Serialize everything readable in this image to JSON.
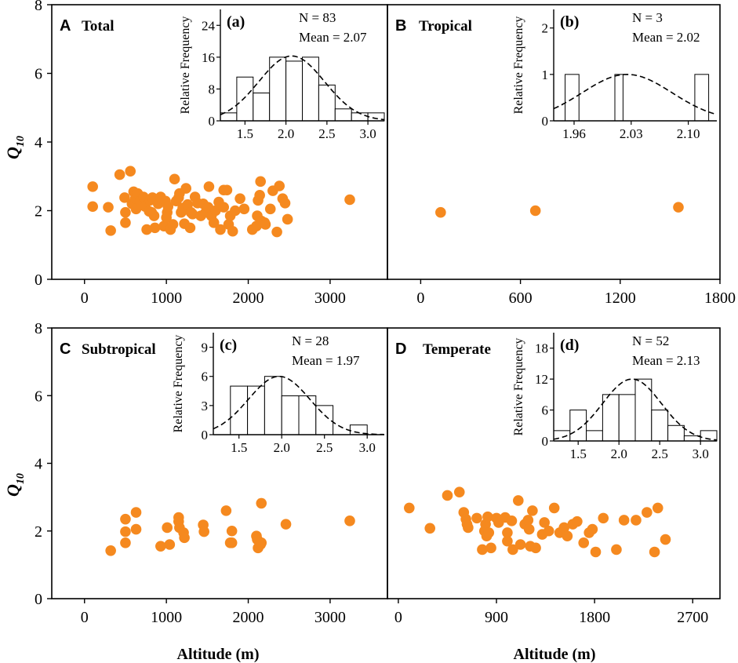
{
  "figure": {
    "ylabel_main": "Q",
    "ylabel_sub": "10",
    "xlabel": "Altitude (m)",
    "point_color": "#F5891F",
    "inset_ylabel": "Relative Frequency"
  },
  "chart_data": [
    {
      "type": "scatter",
      "panel_letter": "A",
      "title": "Total",
      "xlim": [
        -400,
        3700
      ],
      "ylim": [
        0,
        8
      ],
      "xticks": [
        0,
        1000,
        2000,
        3000
      ],
      "xtick_labels": [
        "0",
        "1000",
        "2000",
        "3000"
      ],
      "yticks": [
        0,
        2,
        4,
        6,
        8
      ],
      "ytick_labels": [
        "0",
        "2",
        "4",
        "6",
        "8"
      ],
      "points": [
        [
          100,
          2.7
        ],
        [
          100,
          2.12
        ],
        [
          290,
          2.1
        ],
        [
          320,
          1.42
        ],
        [
          430,
          3.05
        ],
        [
          490,
          2.38
        ],
        [
          500,
          1.95
        ],
        [
          500,
          1.65
        ],
        [
          560,
          3.15
        ],
        [
          580,
          2.2
        ],
        [
          600,
          2.55
        ],
        [
          620,
          2.35
        ],
        [
          630,
          2.05
        ],
        [
          650,
          2.5
        ],
        [
          680,
          2.28
        ],
        [
          720,
          2.4
        ],
        [
          740,
          2.12
        ],
        [
          760,
          1.45
        ],
        [
          790,
          1.98
        ],
        [
          800,
          2.3
        ],
        [
          830,
          2.38
        ],
        [
          850,
          1.85
        ],
        [
          860,
          1.5
        ],
        [
          900,
          2.2
        ],
        [
          930,
          2.4
        ],
        [
          970,
          1.55
        ],
        [
          990,
          2.28
        ],
        [
          1010,
          1.95
        ],
        [
          1020,
          2.12
        ],
        [
          1050,
          1.45
        ],
        [
          1080,
          1.6
        ],
        [
          1100,
          2.92
        ],
        [
          1120,
          2.28
        ],
        [
          1150,
          2.38
        ],
        [
          1160,
          2.5
        ],
        [
          1180,
          1.95
        ],
        [
          1200,
          2.08
        ],
        [
          1220,
          1.62
        ],
        [
          1240,
          2.65
        ],
        [
          1260,
          2.18
        ],
        [
          1290,
          1.5
        ],
        [
          1320,
          1.9
        ],
        [
          1350,
          2.4
        ],
        [
          1380,
          2.22
        ],
        [
          1420,
          1.85
        ],
        [
          1450,
          2.2
        ],
        [
          1480,
          1.95
        ],
        [
          1510,
          2.1
        ],
        [
          1520,
          2.7
        ],
        [
          1550,
          1.85
        ],
        [
          1580,
          1.65
        ],
        [
          1600,
          2.0
        ],
        [
          1640,
          2.25
        ],
        [
          1660,
          1.45
        ],
        [
          1700,
          2.1
        ],
        [
          1740,
          2.6
        ],
        [
          1760,
          1.6
        ],
        [
          1780,
          1.85
        ],
        [
          1810,
          1.4
        ],
        [
          1840,
          2.0
        ],
        [
          1900,
          2.35
        ],
        [
          1950,
          2.05
        ],
        [
          2050,
          1.45
        ],
        [
          2100,
          1.55
        ],
        [
          2110,
          1.85
        ],
        [
          2120,
          2.3
        ],
        [
          2140,
          2.45
        ],
        [
          2150,
          2.85
        ],
        [
          2160,
          1.7
        ],
        [
          2200,
          1.65
        ],
        [
          2210,
          1.6
        ],
        [
          2270,
          2.05
        ],
        [
          2300,
          2.58
        ],
        [
          2350,
          1.38
        ],
        [
          2380,
          2.72
        ],
        [
          2420,
          2.35
        ],
        [
          2450,
          2.22
        ],
        [
          2480,
          1.75
        ],
        [
          3240,
          2.32
        ],
        [
          1700,
          2.6
        ],
        [
          1300,
          1.95
        ],
        [
          1000,
          1.8
        ],
        [
          820,
          1.95
        ]
      ],
      "inset": {
        "label": "(a)",
        "n_text": "N = 83",
        "mean_text": "Mean = 2.07",
        "xlim": [
          1.2,
          3.2
        ],
        "ylim": [
          0,
          28
        ],
        "xticks": [
          1.5,
          2.0,
          2.5,
          3.0
        ],
        "xtick_labels": [
          "1.5",
          "2.0",
          "2.5",
          "3.0"
        ],
        "yticks": [
          0,
          8,
          16,
          24
        ],
        "ytick_labels": [
          "0",
          "8",
          "16",
          "24"
        ],
        "bin_edges": [
          1.2,
          1.4,
          1.6,
          1.8,
          2.0,
          2.2,
          2.4,
          2.6,
          2.8,
          3.0,
          3.2
        ],
        "values": [
          2,
          11,
          7,
          16,
          15,
          16,
          9,
          3,
          2,
          2
        ],
        "curve": {
          "mean": 2.07,
          "sd": 0.4,
          "peak": 16.3
        }
      }
    },
    {
      "type": "scatter",
      "panel_letter": "B",
      "title": "Tropical",
      "xlim": [
        -200,
        1800
      ],
      "ylim": [
        0,
        8
      ],
      "xticks": [
        0,
        600,
        1200,
        1800
      ],
      "xtick_labels": [
        "0",
        "600",
        "1200",
        "1800"
      ],
      "yticks": [
        0,
        2,
        4,
        6,
        8
      ],
      "ytick_labels": [
        "0",
        "2",
        "4",
        "6",
        "8"
      ],
      "points": [
        [
          120,
          1.95
        ],
        [
          690,
          2.0
        ],
        [
          1550,
          2.1
        ]
      ],
      "inset": {
        "label": "(b)",
        "n_text": "N = 3",
        "mean_text": "Mean = 2.02",
        "xlim": [
          1.935,
          2.135
        ],
        "ylim": [
          0,
          2.4
        ],
        "xticks": [
          1.96,
          2.03,
          2.1
        ],
        "xtick_labels": [
          "1.96",
          "2.03",
          "2.10"
        ],
        "yticks": [
          0,
          1,
          2
        ],
        "ytick_labels": [
          "0",
          "1",
          "2"
        ],
        "bin_edges": [
          1.949,
          1.966,
          2.01,
          2.02,
          2.108,
          2.125
        ],
        "values": [
          1,
          0,
          1,
          0,
          1
        ],
        "curve": {
          "mean": 2.025,
          "sd": 0.055,
          "peak": 1.0
        }
      }
    },
    {
      "type": "scatter",
      "panel_letter": "C",
      "title": "Subtropical",
      "xlim": [
        -400,
        3700
      ],
      "ylim": [
        0,
        8
      ],
      "xticks": [
        0,
        1000,
        2000,
        3000
      ],
      "xtick_labels": [
        "0",
        "1000",
        "2000",
        "3000"
      ],
      "yticks": [
        0,
        2,
        4,
        6,
        8
      ],
      "ytick_labels": [
        "0",
        "2",
        "4",
        "6",
        "8"
      ],
      "points": [
        [
          320,
          1.42
        ],
        [
          500,
          2.35
        ],
        [
          500,
          1.98
        ],
        [
          500,
          1.65
        ],
        [
          630,
          2.55
        ],
        [
          630,
          2.05
        ],
        [
          930,
          1.55
        ],
        [
          1010,
          2.1
        ],
        [
          1040,
          1.6
        ],
        [
          1150,
          2.4
        ],
        [
          1150,
          2.28
        ],
        [
          1160,
          2.1
        ],
        [
          1210,
          1.95
        ],
        [
          1220,
          1.8
        ],
        [
          1450,
          2.18
        ],
        [
          1460,
          1.98
        ],
        [
          1730,
          2.6
        ],
        [
          1780,
          1.65
        ],
        [
          1800,
          2.0
        ],
        [
          1800,
          1.65
        ],
        [
          2100,
          1.85
        ],
        [
          2110,
          1.75
        ],
        [
          2120,
          1.5
        ],
        [
          2150,
          1.6
        ],
        [
          2160,
          1.65
        ],
        [
          2160,
          2.82
        ],
        [
          2460,
          2.2
        ],
        [
          3240,
          2.3
        ]
      ],
      "inset": {
        "label": "(c)",
        "n_text": "N = 28",
        "mean_text": "Mean = 1.97",
        "xlim": [
          1.2,
          3.2
        ],
        "ylim": [
          0,
          10.5
        ],
        "xticks": [
          1.5,
          2.0,
          2.5,
          3.0
        ],
        "xtick_labels": [
          "1.5",
          "2.0",
          "2.5",
          "3.0"
        ],
        "yticks": [
          0,
          3,
          6,
          9
        ],
        "ytick_labels": [
          "0",
          "3",
          "6",
          "9"
        ],
        "bin_edges": [
          1.2,
          1.4,
          1.6,
          1.8,
          2.0,
          2.2,
          2.4,
          2.6,
          2.8,
          3.0,
          3.2
        ],
        "values": [
          0,
          5,
          5,
          6,
          4,
          4,
          3,
          0,
          1,
          0
        ],
        "curve": {
          "mean": 1.97,
          "sd": 0.36,
          "peak": 6.0
        }
      }
    },
    {
      "type": "scatter",
      "panel_letter": "D",
      "title": "Temperate",
      "xlim": [
        -100,
        2950
      ],
      "ylim": [
        0,
        8
      ],
      "xticks": [
        0,
        900,
        1800,
        2700
      ],
      "xtick_labels": [
        "0",
        "900",
        "1800",
        "2700"
      ],
      "yticks": [
        0,
        2,
        4,
        6,
        8
      ],
      "ytick_labels": [
        "0",
        "2",
        "4",
        "6",
        "8"
      ],
      "points": [
        [
          100,
          2.68
        ],
        [
          290,
          2.08
        ],
        [
          450,
          3.05
        ],
        [
          560,
          3.15
        ],
        [
          600,
          2.55
        ],
        [
          620,
          2.35
        ],
        [
          630,
          2.2
        ],
        [
          640,
          2.1
        ],
        [
          720,
          2.38
        ],
        [
          770,
          1.45
        ],
        [
          790,
          2.0
        ],
        [
          800,
          2.2
        ],
        [
          810,
          1.85
        ],
        [
          820,
          2.42
        ],
        [
          830,
          1.95
        ],
        [
          850,
          1.5
        ],
        [
          900,
          2.38
        ],
        [
          920,
          2.25
        ],
        [
          980,
          2.4
        ],
        [
          1000,
          1.95
        ],
        [
          1040,
          2.3
        ],
        [
          1050,
          1.45
        ],
        [
          1100,
          2.9
        ],
        [
          1120,
          1.6
        ],
        [
          1160,
          2.2
        ],
        [
          1190,
          2.32
        ],
        [
          1200,
          2.05
        ],
        [
          1210,
          1.55
        ],
        [
          1230,
          2.6
        ],
        [
          1260,
          1.5
        ],
        [
          1320,
          1.9
        ],
        [
          1340,
          2.25
        ],
        [
          1380,
          2.0
        ],
        [
          1430,
          2.68
        ],
        [
          1480,
          1.95
        ],
        [
          1520,
          2.1
        ],
        [
          1550,
          1.85
        ],
        [
          1600,
          2.2
        ],
        [
          1640,
          2.28
        ],
        [
          1700,
          1.65
        ],
        [
          1750,
          1.95
        ],
        [
          1780,
          2.05
        ],
        [
          1810,
          1.38
        ],
        [
          1880,
          2.38
        ],
        [
          2000,
          1.45
        ],
        [
          2070,
          2.32
        ],
        [
          2180,
          2.32
        ],
        [
          2280,
          2.55
        ],
        [
          2350,
          1.38
        ],
        [
          2380,
          2.68
        ],
        [
          2450,
          1.75
        ],
        [
          1000,
          1.7
        ]
      ],
      "inset": {
        "label": "(d)",
        "n_text": "N = 52",
        "mean_text": "Mean = 2.13",
        "xlim": [
          1.2,
          3.2
        ],
        "ylim": [
          0,
          21
        ],
        "xticks": [
          1.5,
          2.0,
          2.5,
          3.0
        ],
        "xtick_labels": [
          "1.5",
          "2.0",
          "2.5",
          "3.0"
        ],
        "yticks": [
          0,
          6,
          12,
          18
        ],
        "ytick_labels": [
          "0",
          "6",
          "12",
          "18"
        ],
        "bin_edges": [
          1.2,
          1.4,
          1.6,
          1.8,
          2.0,
          2.2,
          2.4,
          2.6,
          2.8,
          3.0,
          3.2
        ],
        "values": [
          2,
          6,
          2,
          9,
          9,
          12,
          6,
          3,
          1,
          2
        ],
        "curve": {
          "mean": 2.16,
          "sd": 0.36,
          "peak": 12.0
        }
      }
    }
  ]
}
